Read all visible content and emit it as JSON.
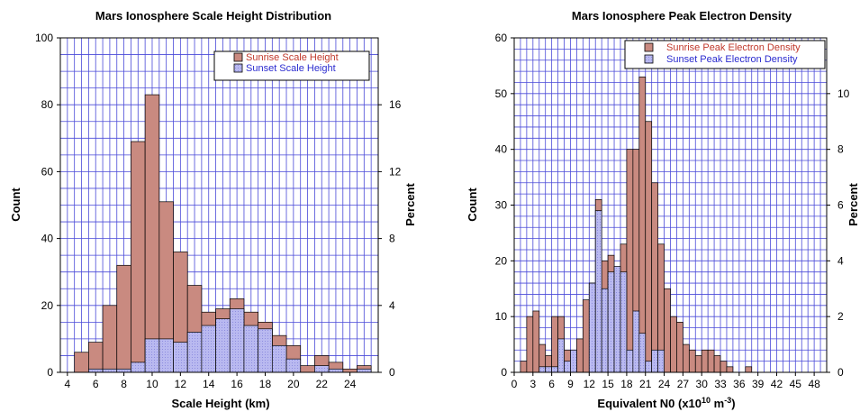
{
  "chart_data": [
    {
      "type": "bar",
      "title": "Mars Ionosphere Scale Height Distribution",
      "xlabel": "Scale Height (km)",
      "ylabel": "Count",
      "y2label": "Percent",
      "xlim": [
        3.5,
        26
      ],
      "ylim": [
        0,
        100
      ],
      "y2lim": [
        0,
        20
      ],
      "x_ticks": [
        4,
        6,
        8,
        10,
        12,
        14,
        16,
        18,
        20,
        22,
        24
      ],
      "y_ticks": [
        0,
        20,
        40,
        60,
        80,
        100
      ],
      "y2_ticks": [
        0,
        4,
        8,
        12,
        16
      ],
      "grid": true,
      "legend_position": "top-right",
      "bin_width": 1,
      "bin_starts": [
        4.5,
        5.5,
        6.5,
        7.5,
        8.5,
        9.5,
        10.5,
        11.5,
        12.5,
        13.5,
        14.5,
        15.5,
        16.5,
        17.5,
        18.5,
        19.5,
        20.5,
        21.5,
        22.5,
        23.5,
        24.5
      ],
      "series": [
        {
          "name": "Sunrise Scale Height",
          "color": "#c98a80",
          "values": [
            6,
            9,
            20,
            32,
            69,
            83,
            51,
            36,
            26,
            18,
            19,
            22,
            18,
            15,
            11,
            8,
            2,
            5,
            3,
            1,
            2
          ]
        },
        {
          "name": "Sunset Scale Height",
          "color": "#b4b4ee",
          "values": [
            0,
            1,
            1,
            1,
            3,
            10,
            10,
            9,
            12,
            14,
            16,
            19,
            14,
            13,
            8,
            4,
            0,
            2,
            1,
            0,
            1
          ]
        }
      ]
    },
    {
      "type": "bar",
      "title": "Mars Ionosphere Peak Electron Density",
      "xlabel": "Equivalent N0 (x10",
      "xlabel_sup1": "10",
      "xlabel_mid": " m",
      "xlabel_sup2": "-3",
      "xlabel_end": ")",
      "ylabel": "Count",
      "y2label": "Percent",
      "xlim": [
        0,
        50
      ],
      "ylim": [
        0,
        60
      ],
      "y2lim": [
        0,
        12
      ],
      "x_ticks": [
        0,
        3,
        6,
        9,
        12,
        15,
        18,
        21,
        24,
        27,
        30,
        33,
        36,
        39,
        42,
        45,
        48
      ],
      "y_ticks": [
        0,
        10,
        20,
        30,
        40,
        50,
        60
      ],
      "y2_ticks": [
        0,
        2,
        4,
        6,
        8,
        10
      ],
      "grid": true,
      "legend_position": "top-right",
      "bin_width": 1,
      "bin_starts": [
        1,
        2,
        3,
        4,
        5,
        6,
        7,
        8,
        9,
        10,
        11,
        12,
        13,
        14,
        15,
        16,
        17,
        18,
        19,
        20,
        21,
        22,
        23,
        24,
        25,
        26,
        27,
        28,
        29,
        30,
        31,
        32,
        33,
        34,
        35,
        36,
        37,
        38
      ],
      "series": [
        {
          "name": "Sunrise Peak Electron Density",
          "color": "#c98a80",
          "values": [
            2,
            10,
            11,
            5,
            3,
            10,
            10,
            4,
            3,
            6,
            13,
            16,
            31,
            20,
            21,
            17,
            23,
            40,
            40,
            53,
            45,
            34,
            23,
            15,
            10,
            9,
            5,
            4,
            3,
            4,
            4,
            3,
            2,
            1,
            0,
            0,
            1,
            0
          ]
        },
        {
          "name": "Sunset Peak Electron Density",
          "color": "#b4b4ee",
          "values": [
            0,
            0,
            0,
            1,
            1,
            1,
            6,
            2,
            4,
            0,
            0,
            16,
            29,
            15,
            18,
            19,
            18,
            4,
            11,
            7,
            2,
            4,
            4,
            0,
            0,
            0,
            0,
            0,
            0,
            0,
            0,
            0,
            0,
            0,
            0,
            0,
            0,
            0
          ]
        }
      ]
    }
  ]
}
